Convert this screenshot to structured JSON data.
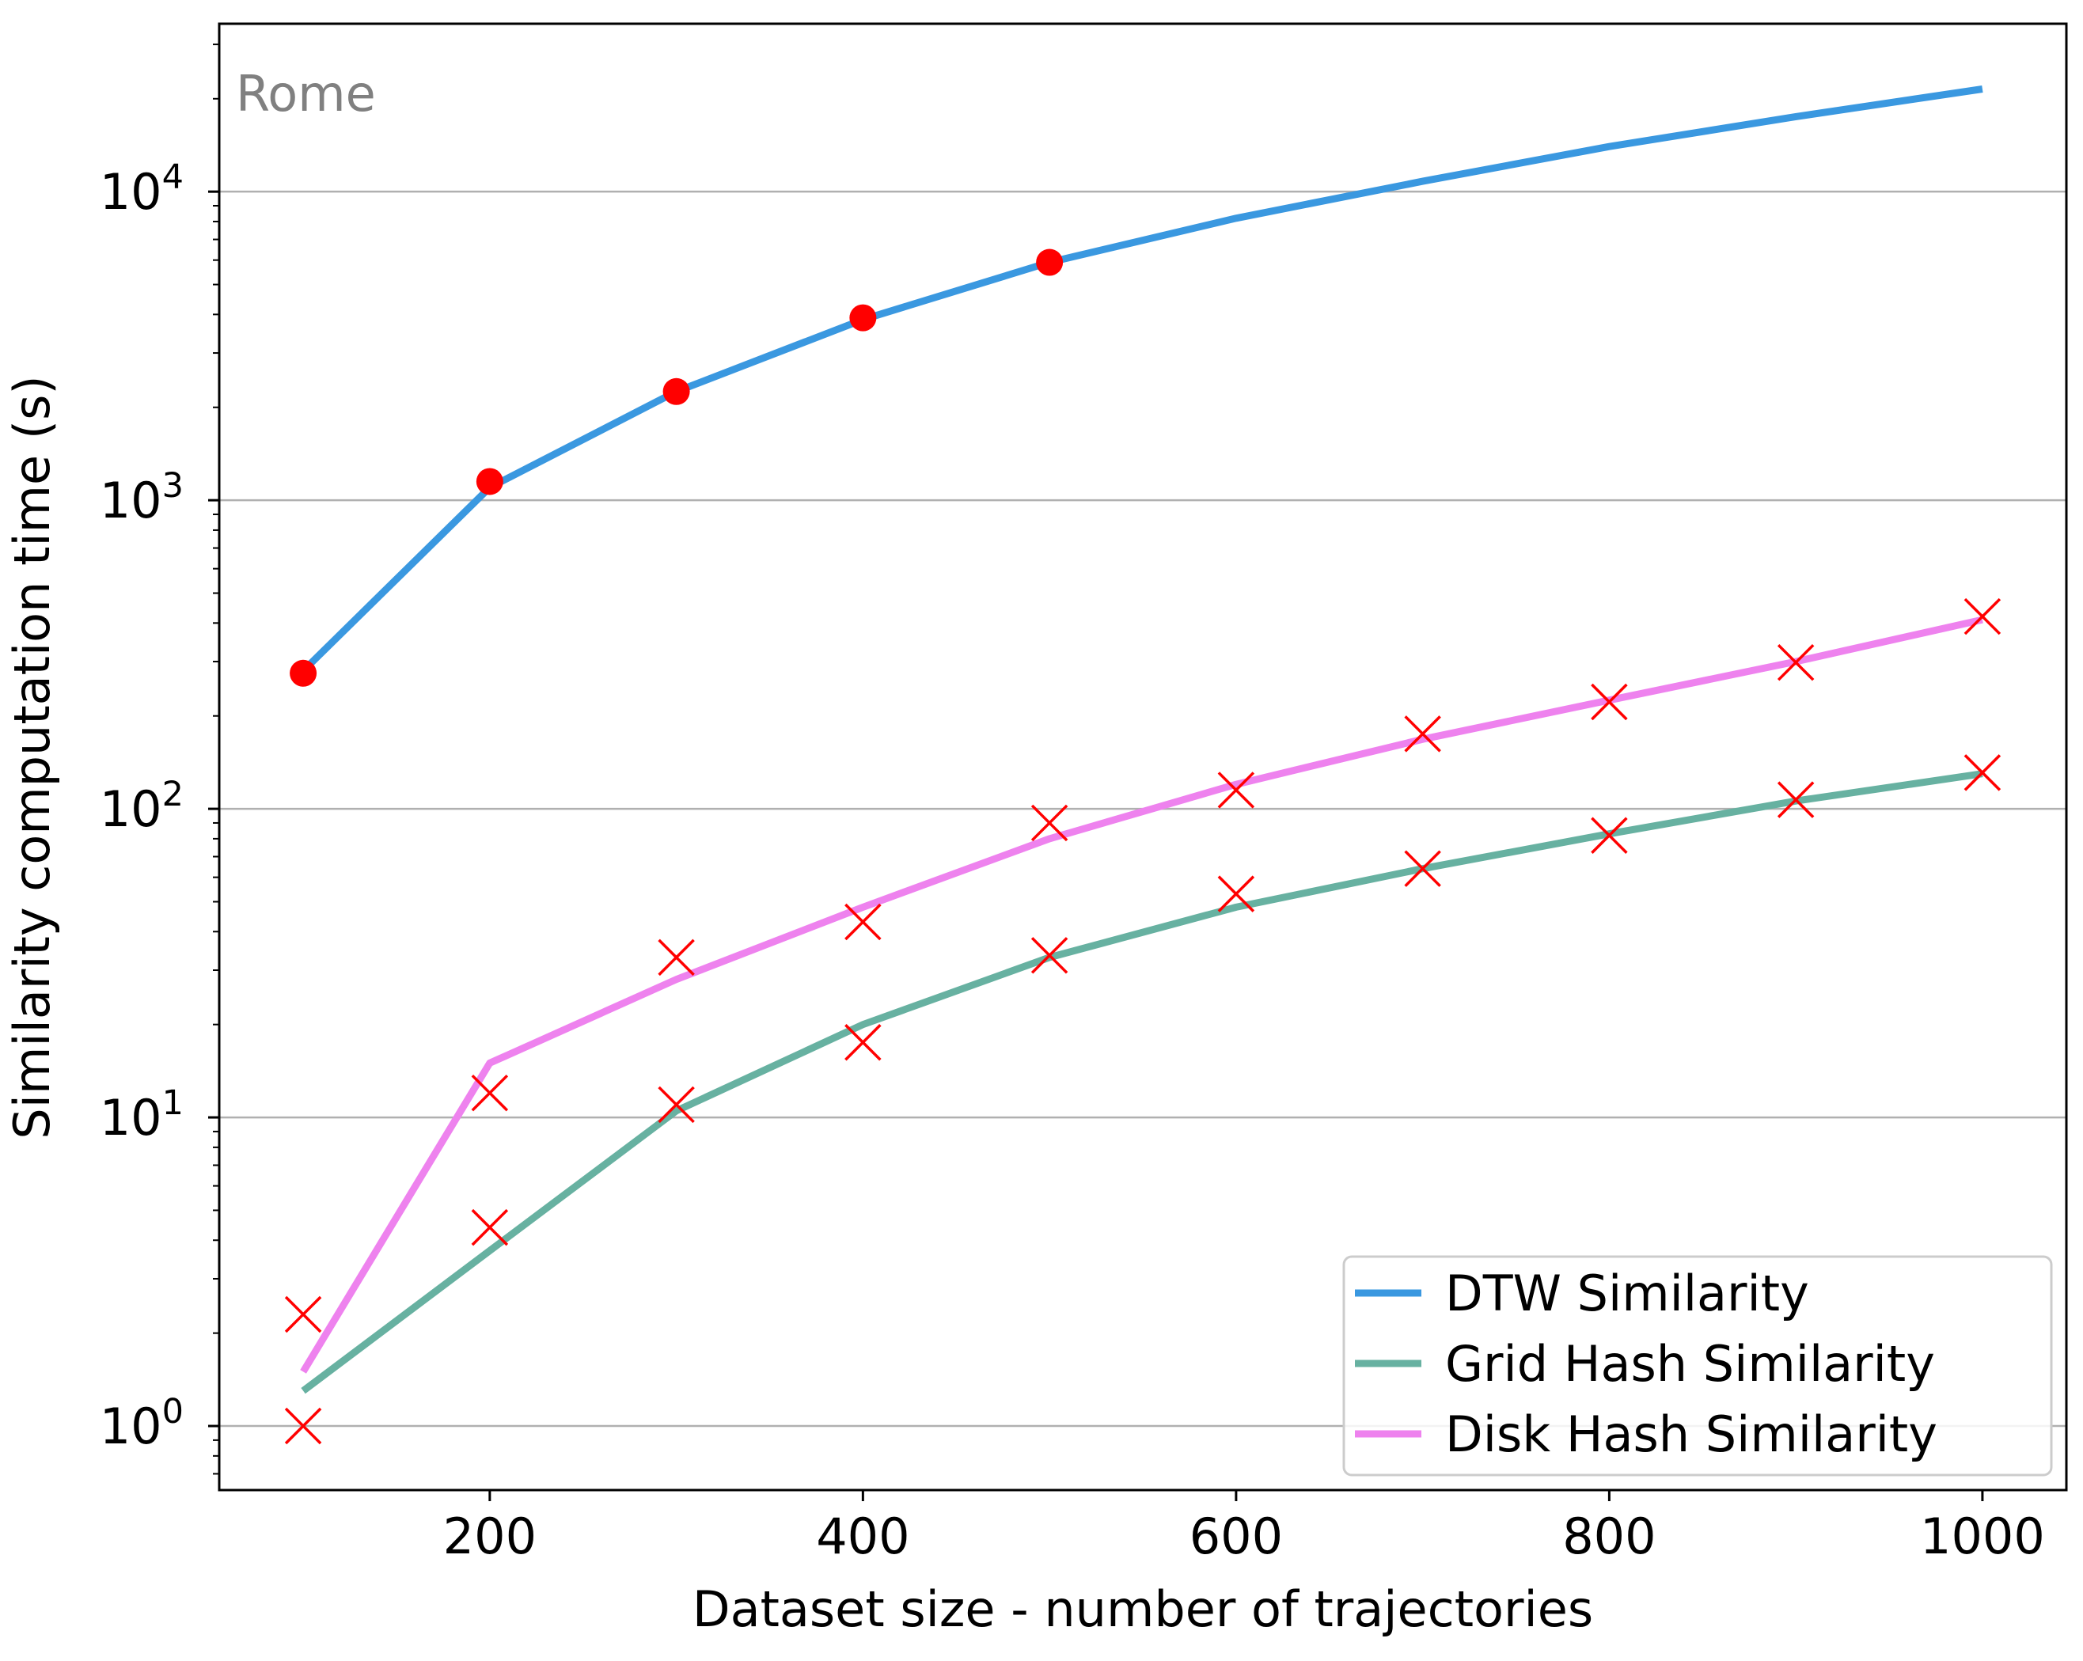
{
  "chart_data": {
    "type": "line",
    "xlabel": "Dataset size - number of trajectories",
    "ylabel": "Similarity computation time (s)",
    "annotation": "Rome",
    "xlim": [
      55,
      1045
    ],
    "ylim": [
      0.62,
      35000
    ],
    "yscale": "log",
    "grid": "y-major",
    "legend_position": "lower-right",
    "x_ticks": [
      {
        "value": 200,
        "label": "200"
      },
      {
        "value": 400,
        "label": "400"
      },
      {
        "value": 600,
        "label": "600"
      },
      {
        "value": 800,
        "label": "800"
      },
      {
        "value": 1000,
        "label": "1000"
      }
    ],
    "y_ticks": [
      {
        "value": 1,
        "base": "10",
        "exp": "0"
      },
      {
        "value": 10,
        "base": "10",
        "exp": "1"
      },
      {
        "value": 100,
        "base": "10",
        "exp": "2"
      },
      {
        "value": 1000,
        "base": "10",
        "exp": "3"
      },
      {
        "value": 10000,
        "base": "10",
        "exp": "4"
      }
    ],
    "series": [
      {
        "name": "DTW Similarity",
        "color": "#3a98e0",
        "x": [
          100,
          200,
          300,
          400,
          500,
          600,
          700,
          800,
          900,
          1000
        ],
        "values": [
          280,
          1100,
          2250,
          3850,
          5900,
          8200,
          10800,
          14000,
          17500,
          21500
        ]
      },
      {
        "name": "Grid Hash Similarity",
        "color": "#67b1a1",
        "x": [
          100,
          200,
          300,
          400,
          500,
          600,
          700,
          800,
          900,
          1000
        ],
        "values": [
          1.3,
          3.7,
          10.5,
          20,
          33,
          48,
          64,
          83,
          106,
          130
        ]
      },
      {
        "name": "Disk Hash Similarity",
        "color": "#ee82ee",
        "x": [
          100,
          200,
          300,
          400,
          500,
          600,
          700,
          800,
          900,
          1000
        ],
        "values": [
          1.5,
          15,
          28,
          48,
          80,
          120,
          168,
          225,
          300,
          410
        ]
      }
    ],
    "markers": [
      {
        "kind": "dot",
        "color": "#ff0000",
        "x": [
          100,
          200,
          300,
          400,
          500
        ],
        "values": [
          275,
          1150,
          2250,
          3900,
          5900
        ]
      },
      {
        "kind": "x",
        "color": "#ff0000",
        "x": [
          100,
          200,
          300,
          400,
          500,
          600,
          700,
          800,
          900,
          1000
        ],
        "values": [
          1.0,
          4.4,
          11,
          17.5,
          33.5,
          53,
          64,
          82,
          107,
          131
        ]
      },
      {
        "kind": "x",
        "color": "#ff0000",
        "x": [
          100,
          200,
          300,
          400,
          500,
          600,
          700,
          800,
          900,
          1000
        ],
        "values": [
          2.3,
          12,
          33,
          43,
          90,
          115,
          175,
          222,
          298,
          420
        ]
      }
    ]
  }
}
